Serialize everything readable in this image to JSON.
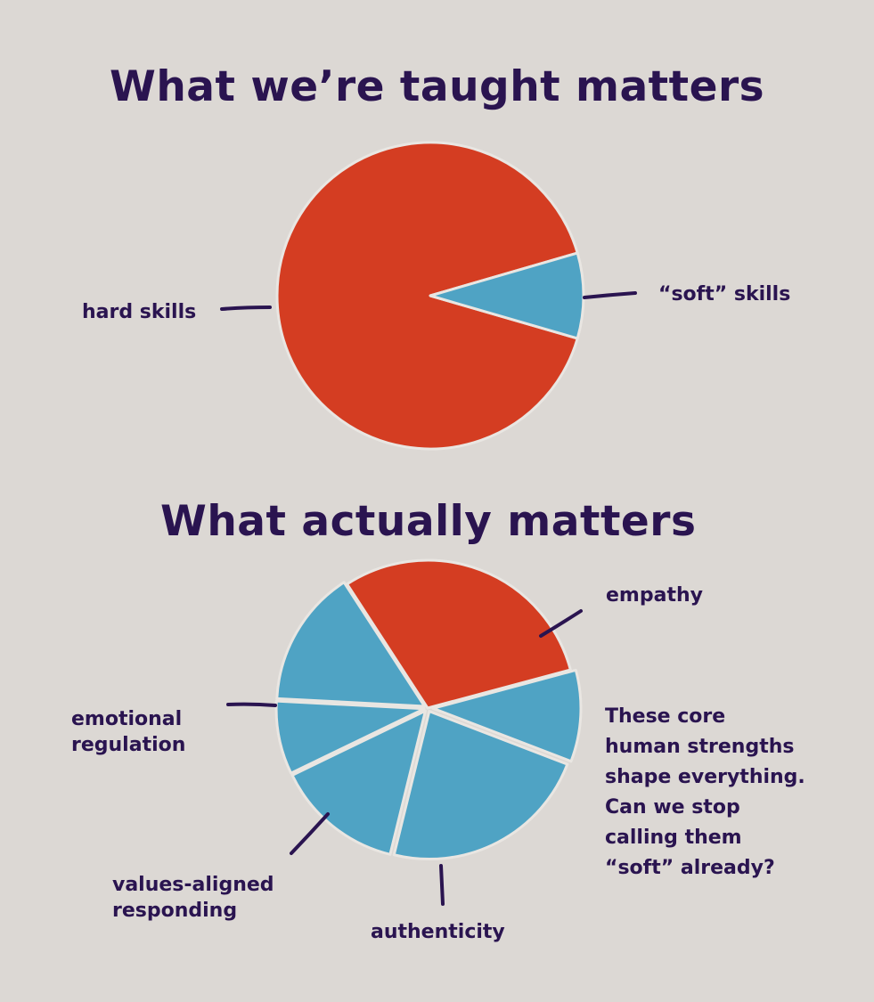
{
  "chart_data": [
    {
      "type": "pie",
      "title": "What we’re taught matters",
      "slices": [
        {
          "label": "hard skills",
          "value": 91,
          "color": "#d43d22"
        },
        {
          "label": "“soft” skills",
          "value": 9,
          "color": "#4fa3c4"
        }
      ]
    },
    {
      "type": "pie",
      "title": "What actually matters",
      "slices": [
        {
          "label": "",
          "value": 30,
          "color": "#d43d22"
        },
        {
          "label": "empathy",
          "value": 10,
          "color": "#4fa3c4"
        },
        {
          "label": "",
          "value": 23,
          "color": "#4fa3c4"
        },
        {
          "label": "authenticity",
          "value": 14,
          "color": "#4fa3c4"
        },
        {
          "label": "values-aligned responding",
          "value": 8,
          "color": "#4fa3c4"
        },
        {
          "label": "emotional regulation",
          "value": 15,
          "color": "#4fa3c4"
        }
      ]
    }
  ],
  "labels": {
    "hard_skills": "hard skills",
    "soft_skills": "“soft” skills",
    "empathy": "empathy",
    "emotional_regulation": [
      "emotional",
      "regulation"
    ],
    "values_aligned_responding": [
      "values-aligned",
      "responding"
    ],
    "authenticity": "authenticity"
  },
  "note_lines": [
    "These core",
    "human strengths",
    "shape everything.",
    "Can we stop",
    "calling them",
    "“soft” already?"
  ],
  "colors": {
    "background": "#dcd8d4",
    "text": "#2a1450",
    "hard": "#d43d22",
    "soft": "#4fa3c4"
  }
}
